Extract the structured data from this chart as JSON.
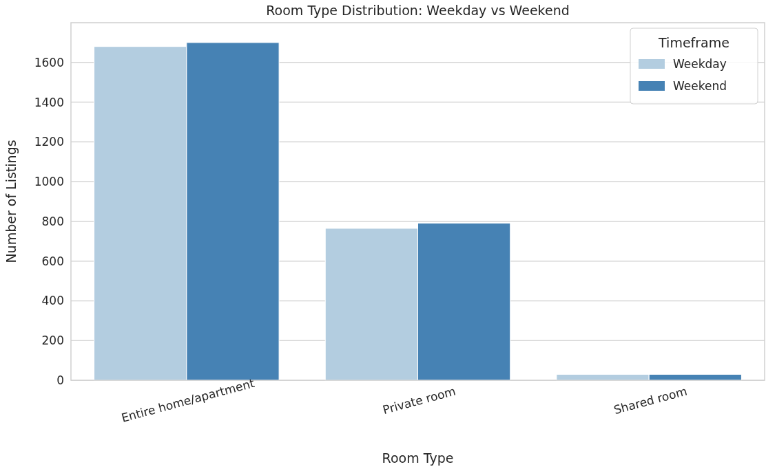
{
  "chart_data": {
    "type": "bar",
    "title": "Room Type Distribution: Weekday vs Weekend",
    "xlabel": "Room Type",
    "ylabel": "Number of Listings",
    "legend_title": "Timeframe",
    "categories": [
      "Entire home/apartment",
      "Private room",
      "Shared room"
    ],
    "series": [
      {
        "name": "Weekday",
        "color": "#b3cde0",
        "values": [
          1680,
          765,
          30
        ]
      },
      {
        "name": "Weekend",
        "color": "#4682b4",
        "values": [
          1700,
          791,
          30
        ]
      }
    ],
    "ylim": [
      0,
      1800
    ],
    "yticks": [
      0,
      200,
      400,
      600,
      800,
      1000,
      1200,
      1400,
      1600
    ],
    "grid": "y",
    "legend": "top right"
  }
}
